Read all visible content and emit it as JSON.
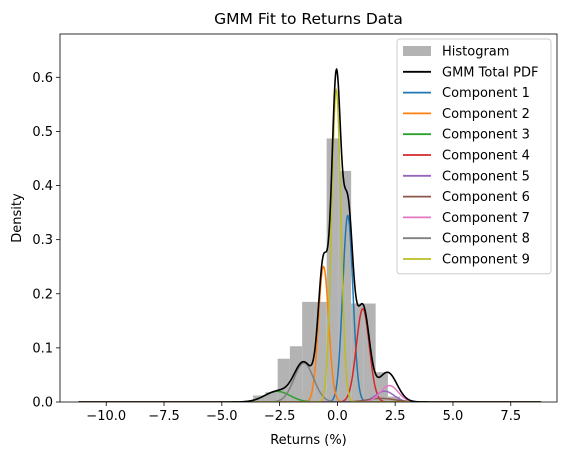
{
  "chart_data": {
    "type": "line",
    "title": "GMM Fit to Returns Data",
    "xlabel": "Returns (%)",
    "ylabel": "Density",
    "xlim": [
      -12.0,
      9.5
    ],
    "ylim": [
      0,
      0.68
    ],
    "xticks": [
      -10.0,
      -7.5,
      -5.0,
      -2.5,
      0.0,
      2.5,
      5.0,
      7.5
    ],
    "xtick_labels": [
      "−10.0",
      "−7.5",
      "−5.0",
      "−2.5",
      "0.0",
      "2.5",
      "5.0",
      "7.5"
    ],
    "yticks": [
      0.0,
      0.1,
      0.2,
      0.3,
      0.4,
      0.5,
      0.6
    ],
    "ytick_labels": [
      "0.0",
      "0.1",
      "0.2",
      "0.3",
      "0.4",
      "0.5",
      "0.6"
    ],
    "grid": false,
    "legend_position": "top-right",
    "curve_range": [
      -11.2,
      8.8
    ],
    "histogram": {
      "name": "Histogram",
      "color": "#b3b3b3",
      "bin_width": 0.53,
      "bins": [
        {
          "x": -3.38,
          "height": 0.012
        },
        {
          "x": -2.85,
          "height": 0.018
        },
        {
          "x": -2.32,
          "height": 0.08
        },
        {
          "x": -1.79,
          "height": 0.103
        },
        {
          "x": -1.26,
          "height": 0.185
        },
        {
          "x": -0.73,
          "height": 0.185
        },
        {
          "x": -0.2,
          "height": 0.487
        },
        {
          "x": 0.33,
          "height": 0.427
        },
        {
          "x": 0.86,
          "height": 0.182
        },
        {
          "x": 1.39,
          "height": 0.182
        },
        {
          "x": 1.92,
          "height": 0.055
        },
        {
          "x": 2.45,
          "height": 0.01
        }
      ]
    },
    "total": {
      "name": "GMM Total PDF",
      "color": "#000000"
    },
    "components": [
      {
        "name": "Component 1",
        "color": "#1f77b4",
        "mean": 0.45,
        "sd": 0.22,
        "weight": 0.19
      },
      {
        "name": "Component 2",
        "color": "#ff7f0e",
        "mean": -0.6,
        "sd": 0.22,
        "weight": 0.138
      },
      {
        "name": "Component 3",
        "color": "#2ca02c",
        "mean": -2.6,
        "sd": 0.55,
        "weight": 0.027
      },
      {
        "name": "Component 4",
        "color": "#d62728",
        "mean": 1.1,
        "sd": 0.28,
        "weight": 0.121
      },
      {
        "name": "Component 5",
        "color": "#9467bd",
        "mean": 2.05,
        "sd": 0.4,
        "weight": 0.02
      },
      {
        "name": "Component 6",
        "color": "#8c564b",
        "mean": 1.9,
        "sd": 0.6,
        "weight": 0.01
      },
      {
        "name": "Component 7",
        "color": "#e377c2",
        "mean": 2.25,
        "sd": 0.38,
        "weight": 0.029
      },
      {
        "name": "Component 8",
        "color": "#7f7f7f",
        "mean": -1.45,
        "sd": 0.42,
        "weight": 0.076
      },
      {
        "name": "Component 9",
        "color": "#bcbd22",
        "mean": -0.05,
        "sd": 0.2,
        "weight": 0.289
      }
    ]
  }
}
